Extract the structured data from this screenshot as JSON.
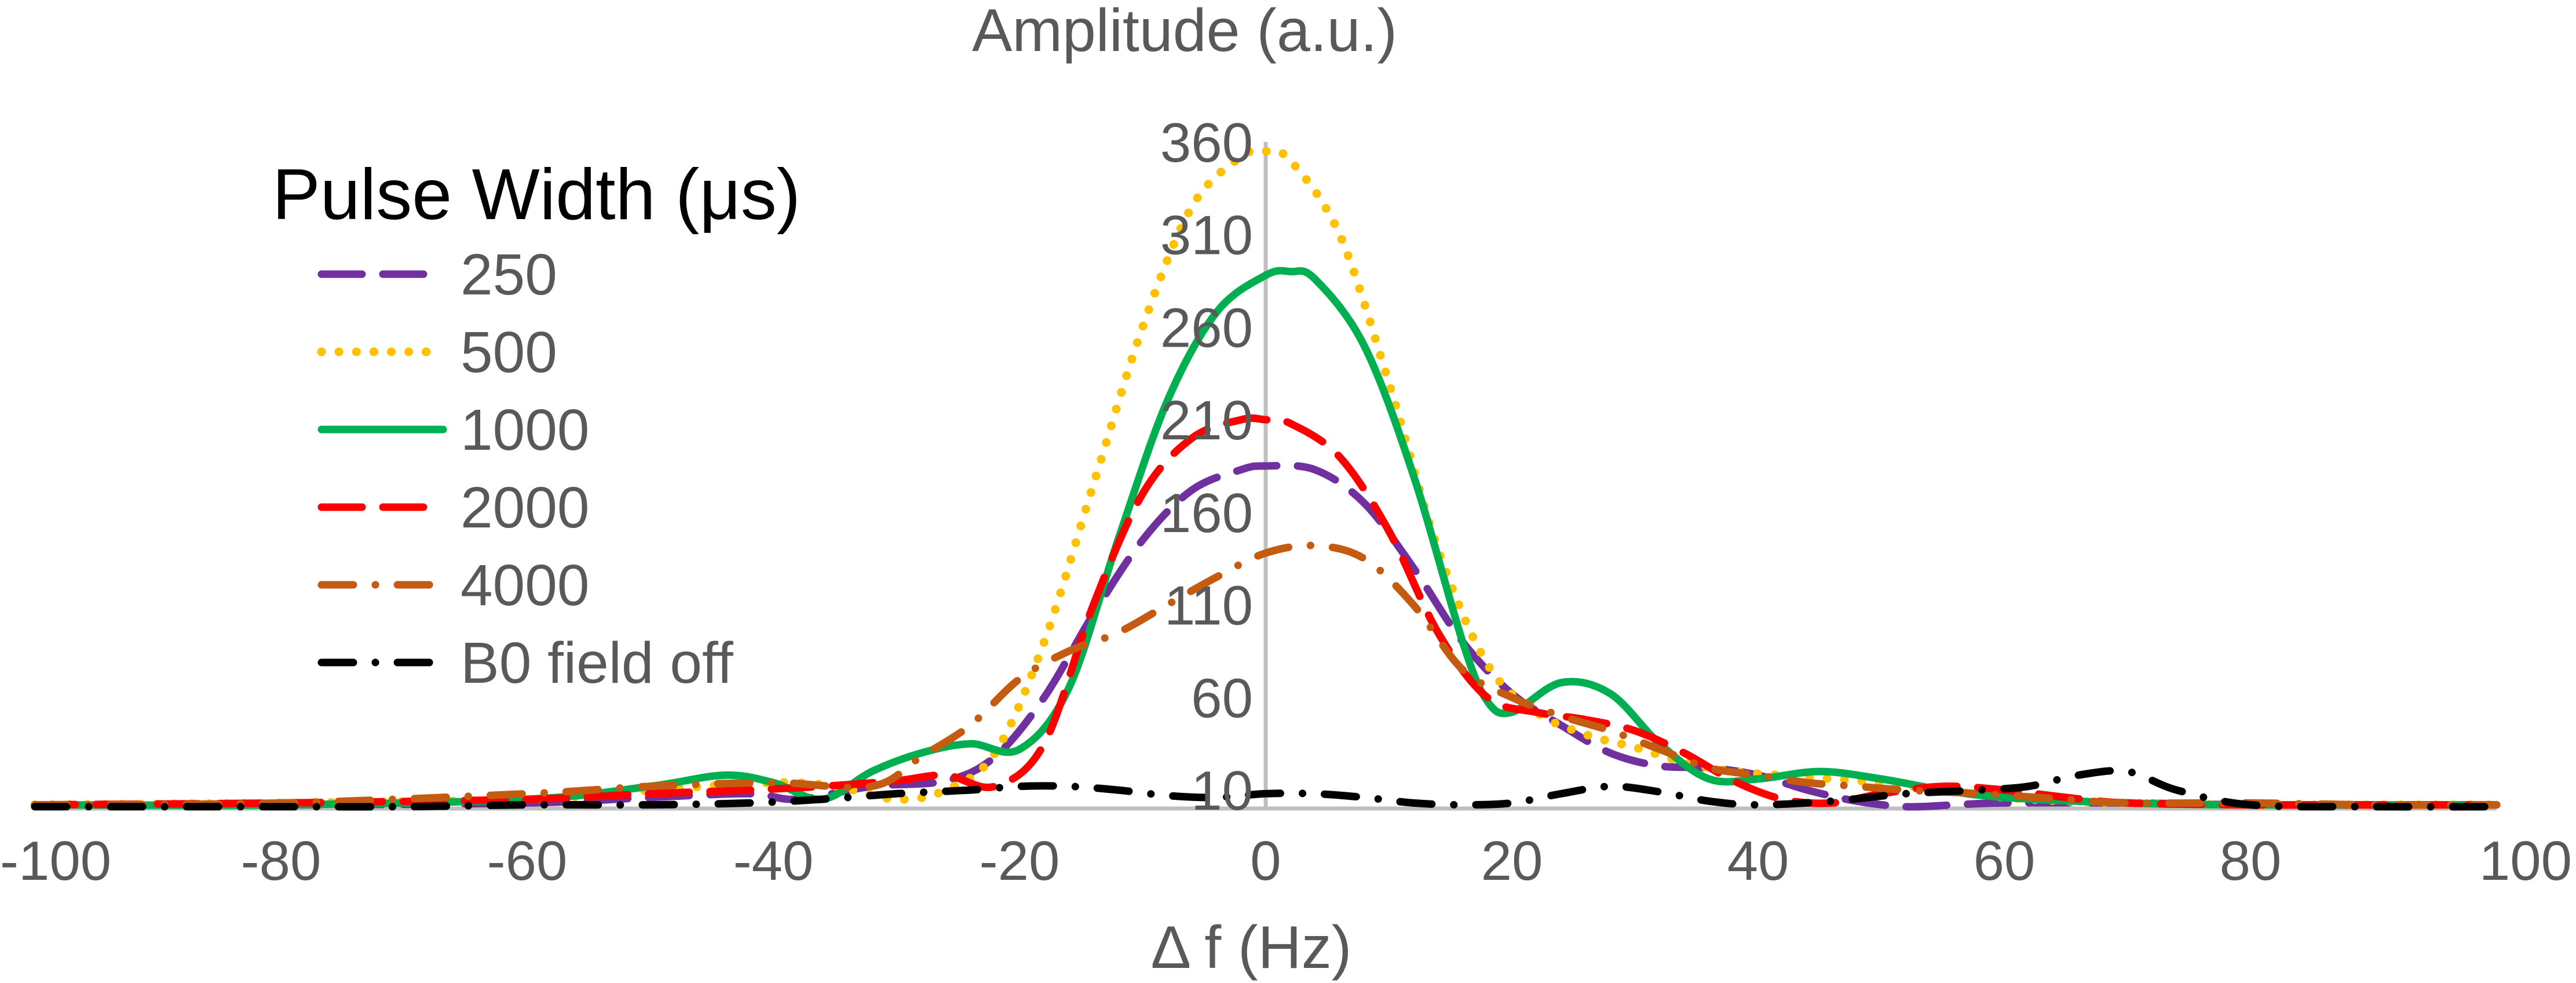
{
  "chart_data": {
    "type": "line",
    "xlabel": "Δ f (Hz)",
    "ylabel": "Amplitude (a.u.)",
    "xlim": [
      -100,
      100
    ],
    "ylim": [
      0,
      360
    ],
    "x_ticks": [
      -100,
      -80,
      -60,
      -40,
      -20,
      0,
      20,
      40,
      60,
      80,
      100
    ],
    "x_tick_labels": [
      "-100",
      "-80",
      "-60",
      "-40",
      "-20",
      "0",
      "20",
      "40",
      "60",
      "80",
      "100"
    ],
    "y_ticks": [
      10,
      60,
      110,
      160,
      210,
      260,
      310,
      360
    ],
    "y_tick_labels": [
      "10",
      "60",
      "110",
      "160",
      "210",
      "260",
      "310",
      "360"
    ],
    "grid": false,
    "legend": {
      "title": "Pulse Width (μs)",
      "placement": "top-left"
    },
    "series": [
      {
        "name": "250",
        "color": "#7030A0",
        "style": "dashed",
        "x": [
          -100,
          -80,
          -60,
          -50,
          -42,
          -38,
          -32,
          -26,
          -22,
          -18,
          -14,
          -10,
          -6,
          -2,
          0,
          4,
          8,
          12,
          16,
          20,
          24,
          28,
          32,
          36,
          40,
          44,
          48,
          52,
          56,
          60,
          70,
          80,
          90,
          100
        ],
        "y": [
          2,
          2,
          3,
          6,
          8,
          5,
          12,
          15,
          28,
          60,
          105,
          145,
          172,
          183,
          185,
          183,
          165,
          130,
          90,
          62,
          45,
          30,
          23,
          22,
          18,
          10,
          4,
          1,
          2,
          3,
          3,
          2,
          2,
          2
        ]
      },
      {
        "name": "500",
        "color": "#FFC000",
        "style": "dotted",
        "x": [
          -100,
          -80,
          -60,
          -50,
          -40,
          -35,
          -30,
          -26,
          -22,
          -18,
          -14,
          -10,
          -6,
          -2,
          0,
          2,
          6,
          10,
          14,
          18,
          22,
          26,
          30,
          34,
          38,
          42,
          46,
          50,
          55,
          60,
          65,
          70,
          80,
          90,
          100
        ],
        "y": [
          2,
          3,
          5,
          10,
          14,
          12,
          5,
          10,
          30,
          90,
          175,
          260,
          325,
          352,
          355,
          350,
          310,
          230,
          140,
          78,
          52,
          40,
          33,
          25,
          20,
          18,
          16,
          14,
          10,
          6,
          4,
          3,
          2,
          2,
          2
        ]
      },
      {
        "name": "1000",
        "color": "#00B050",
        "style": "solid",
        "x": [
          -100,
          -80,
          -60,
          -50,
          -44,
          -40,
          -36,
          -32,
          -28,
          -24,
          -20,
          -16,
          -12,
          -8,
          -4,
          0,
          2,
          4,
          8,
          12,
          16,
          18,
          20,
          24,
          28,
          32,
          36,
          40,
          45,
          50,
          55,
          60,
          70,
          80,
          100
        ],
        "y": [
          2,
          2,
          5,
          12,
          18,
          14,
          5,
          20,
          30,
          35,
          32,
          65,
          145,
          220,
          268,
          288,
          290,
          286,
          250,
          180,
          90,
          58,
          52,
          68,
          62,
          35,
          16,
          16,
          20,
          16,
          10,
          6,
          3,
          2,
          2
        ]
      },
      {
        "name": "2000",
        "color": "#FF0000",
        "style": "dashed",
        "x": [
          -100,
          -80,
          -60,
          -50,
          -42,
          -36,
          -30,
          -26,
          -22,
          -18,
          -14,
          -10,
          -6,
          -2,
          0,
          2,
          6,
          10,
          14,
          18,
          22,
          26,
          30,
          34,
          38,
          42,
          46,
          50,
          55,
          60,
          65,
          70,
          80,
          90,
          100
        ],
        "y": [
          2,
          3,
          5,
          8,
          10,
          12,
          15,
          18,
          12,
          35,
          110,
          170,
          200,
          210,
          210,
          208,
          190,
          150,
          95,
          60,
          52,
          48,
          42,
          30,
          15,
          5,
          3,
          8,
          12,
          10,
          6,
          3,
          2,
          2,
          2
        ]
      },
      {
        "name": "4000",
        "color": "#C55A11",
        "style": "dashdot",
        "x": [
          -100,
          -80,
          -60,
          -50,
          -40,
          -32,
          -28,
          -24,
          -20,
          -16,
          -12,
          -8,
          -4,
          0,
          4,
          8,
          12,
          16,
          20,
          24,
          28,
          32,
          36,
          40,
          44,
          48,
          52,
          58,
          65,
          70,
          80,
          90,
          100
        ],
        "y": [
          2,
          3,
          8,
          12,
          14,
          12,
          28,
          45,
          70,
          85,
          95,
          110,
          125,
          138,
          142,
          135,
          110,
          75,
          60,
          50,
          42,
          32,
          22,
          18,
          14,
          12,
          10,
          8,
          5,
          3,
          3,
          2,
          2
        ]
      },
      {
        "name": "B0 field off",
        "color": "#000000",
        "style": "dashdot",
        "x": [
          -100,
          -90,
          -80,
          -70,
          -60,
          -50,
          -42,
          -36,
          -30,
          -24,
          -20,
          -16,
          -12,
          -8,
          -4,
          0,
          4,
          8,
          12,
          16,
          20,
          24,
          28,
          32,
          36,
          40,
          46,
          52,
          58,
          62,
          66,
          70,
          74,
          80,
          90,
          100
        ],
        "y": [
          1,
          1,
          1,
          1,
          2,
          2,
          3,
          5,
          8,
          10,
          12,
          12,
          10,
          7,
          6,
          8,
          8,
          6,
          3,
          2,
          3,
          8,
          12,
          9,
          4,
          2,
          4,
          8,
          10,
          12,
          18,
          20,
          10,
          2,
          1,
          1
        ]
      }
    ]
  }
}
